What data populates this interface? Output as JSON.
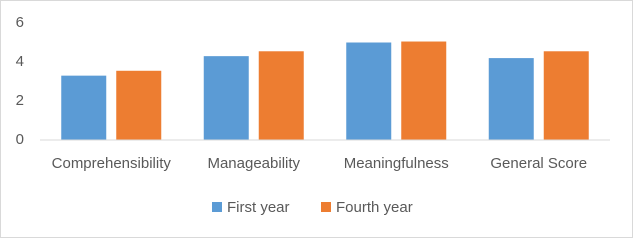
{
  "chart_data": {
    "type": "bar",
    "categories": [
      "Comprehensibility",
      "Manageability",
      "Meaningfulness",
      "General Score"
    ],
    "series": [
      {
        "name": "First year",
        "color": "#5b9bd5",
        "values": [
          3.3,
          4.3,
          5.0,
          4.2
        ]
      },
      {
        "name": "Fourth year",
        "color": "#ed7d31",
        "values": [
          3.55,
          4.55,
          5.05,
          4.55
        ]
      }
    ],
    "ylim": [
      0,
      6
    ],
    "yticks": [
      0,
      2,
      4,
      6
    ],
    "grid": false,
    "legend": "bottom"
  }
}
